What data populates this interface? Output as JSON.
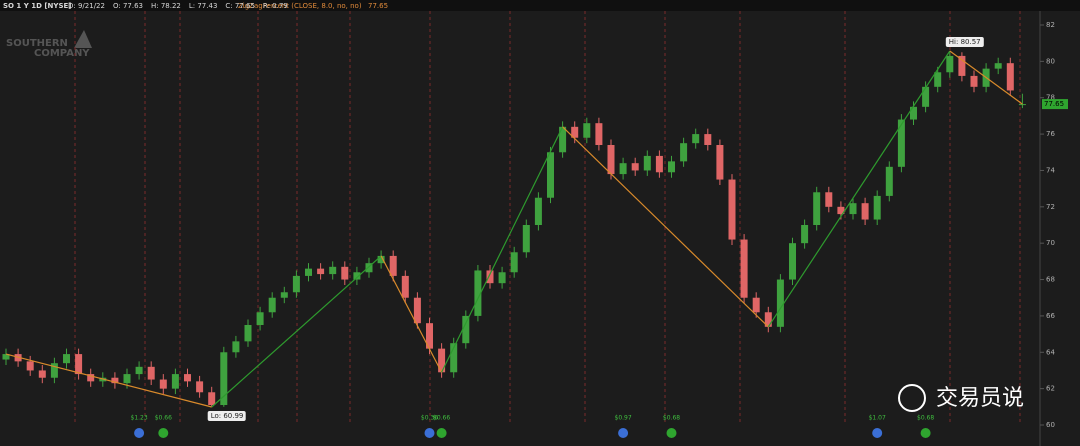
{
  "chart_data": {
    "type": "candlestick",
    "header": {
      "symbol": "SO 1 Y 1D [NYSE]",
      "fields": [
        "D: 9/21/22",
        "O: 77.63",
        "H: 78.22",
        "L: 77.43",
        "C: 77.65",
        "R: 0.79"
      ],
      "study": "ZigZagPercent (CLOSE, 8.0, no, no)",
      "study_value": "77.65"
    },
    "logo": [
      "SOUTHERN",
      "COMPANY"
    ],
    "open": [
      63.6,
      63.9,
      63.5,
      63.0,
      62.6,
      63.4,
      63.9,
      62.8,
      62.4,
      62.6,
      62.3,
      62.8,
      63.2,
      62.5,
      62.0,
      62.8,
      62.4,
      61.8,
      61.1,
      64.0,
      64.6,
      65.5,
      66.2,
      67.0,
      67.3,
      68.2,
      68.6,
      68.3,
      68.7,
      68.0,
      68.4,
      68.9,
      69.3,
      68.2,
      67.0,
      65.6,
      64.2,
      62.9,
      64.5,
      66.0,
      68.5,
      67.8,
      68.4,
      69.5,
      71.0,
      72.5,
      75.0,
      76.4,
      75.8,
      76.6,
      75.4,
      73.8,
      74.4,
      74.0,
      74.8,
      73.9,
      74.5,
      75.5,
      76.0,
      75.4,
      73.5,
      70.2,
      67.0,
      66.2,
      65.4,
      68.0,
      70.0,
      71.0,
      72.8,
      72.0,
      71.6,
      72.2,
      71.3,
      72.6,
      74.2,
      76.8,
      77.5,
      78.6,
      79.4,
      80.3,
      79.2,
      78.6,
      79.6,
      79.9,
      77.63
    ],
    "high": [
      64.2,
      64.2,
      63.8,
      63.3,
      63.7,
      64.2,
      64.2,
      63.1,
      62.9,
      62.9,
      63.1,
      63.5,
      63.5,
      62.8,
      63.1,
      63.1,
      62.7,
      62.1,
      64.3,
      64.9,
      65.8,
      66.5,
      67.3,
      67.6,
      68.5,
      68.9,
      68.9,
      69.0,
      69.0,
      68.7,
      69.2,
      69.6,
      69.6,
      68.5,
      67.3,
      65.9,
      64.5,
      64.8,
      66.3,
      68.8,
      68.8,
      68.7,
      69.8,
      71.3,
      72.8,
      75.3,
      76.7,
      76.7,
      76.9,
      76.9,
      75.7,
      74.7,
      74.7,
      75.1,
      75.1,
      74.8,
      75.8,
      76.3,
      76.3,
      75.7,
      73.8,
      70.5,
      67.3,
      66.5,
      68.3,
      70.3,
      71.3,
      73.1,
      73.1,
      72.3,
      72.5,
      72.5,
      72.9,
      74.5,
      77.1,
      77.8,
      78.9,
      79.7,
      80.57,
      80.5,
      79.5,
      79.9,
      80.2,
      80.2,
      78.22
    ],
    "low": [
      63.3,
      63.2,
      62.7,
      62.3,
      62.3,
      63.1,
      62.5,
      62.1,
      62.1,
      62.0,
      62.0,
      62.5,
      62.2,
      61.7,
      61.7,
      62.1,
      61.5,
      60.99,
      61.0,
      63.7,
      64.3,
      65.2,
      65.9,
      66.7,
      67.0,
      67.9,
      68.0,
      68.0,
      67.7,
      67.7,
      68.1,
      68.6,
      67.9,
      66.7,
      65.3,
      63.9,
      62.6,
      62.6,
      64.2,
      65.7,
      67.5,
      67.5,
      68.1,
      69.2,
      70.7,
      72.2,
      74.7,
      75.5,
      75.5,
      75.1,
      73.5,
      73.5,
      73.7,
      73.7,
      73.6,
      73.6,
      74.2,
      75.2,
      75.1,
      73.2,
      69.9,
      66.7,
      65.9,
      65.1,
      65.1,
      67.7,
      69.7,
      70.7,
      71.7,
      71.3,
      71.3,
      71.0,
      71.0,
      72.3,
      73.9,
      76.5,
      77.2,
      78.3,
      79.1,
      78.9,
      78.3,
      78.3,
      79.3,
      78.1,
      77.43
    ],
    "close": [
      63.9,
      63.5,
      63.0,
      62.6,
      63.4,
      63.9,
      62.8,
      62.4,
      62.6,
      62.3,
      62.8,
      63.2,
      62.5,
      62.0,
      62.8,
      62.4,
      61.8,
      61.1,
      64.0,
      64.6,
      65.5,
      66.2,
      67.0,
      67.3,
      68.2,
      68.6,
      68.3,
      68.7,
      68.0,
      68.4,
      68.9,
      69.3,
      68.2,
      67.0,
      65.6,
      64.2,
      62.9,
      64.5,
      66.0,
      68.5,
      67.8,
      68.4,
      69.5,
      71.0,
      72.5,
      75.0,
      76.4,
      75.8,
      76.6,
      75.4,
      73.8,
      74.4,
      74.0,
      74.8,
      73.9,
      74.5,
      75.5,
      76.0,
      75.4,
      73.5,
      70.2,
      67.0,
      66.2,
      65.4,
      68.0,
      70.0,
      71.0,
      72.8,
      72.0,
      71.6,
      72.2,
      71.3,
      72.6,
      74.2,
      76.8,
      77.5,
      78.6,
      79.4,
      80.3,
      79.2,
      78.6,
      79.6,
      79.9,
      78.4,
      77.65
    ],
    "up_color": "#3fa23f",
    "down_color": "#e06666",
    "zigzag": {
      "index": [
        0,
        17,
        31,
        36,
        46,
        63,
        78,
        84
      ],
      "values": [
        63.9,
        60.99,
        69.3,
        62.9,
        76.4,
        65.4,
        80.57,
        77.65
      ],
      "up_color": "#2e9b2e",
      "down_color": "#d98a2b"
    },
    "pivot_labels": [
      {
        "index": 17,
        "label": "Lo: 60.99"
      },
      {
        "index": 78,
        "label": "Hi: 80.57"
      }
    ],
    "last_price": {
      "value": 77.65,
      "label": "77.65"
    },
    "events": [
      {
        "index": 11,
        "label": "$1.23"
      },
      {
        "index": 13,
        "label": "$0.66"
      },
      {
        "index": 35,
        "label": "$0.36"
      },
      {
        "index": 36,
        "label": "$0.66"
      },
      {
        "index": 51,
        "label": "$0.97"
      },
      {
        "index": 55,
        "label": "$0.68"
      },
      {
        "index": 72,
        "label": "$1.07"
      },
      {
        "index": 76,
        "label": "$0.68"
      }
    ],
    "ylim": [
      60,
      82
    ],
    "yticks": [
      60,
      62,
      64,
      66,
      68,
      70,
      72,
      74,
      76,
      78,
      80,
      82
    ],
    "watermark": "交易员说"
  }
}
